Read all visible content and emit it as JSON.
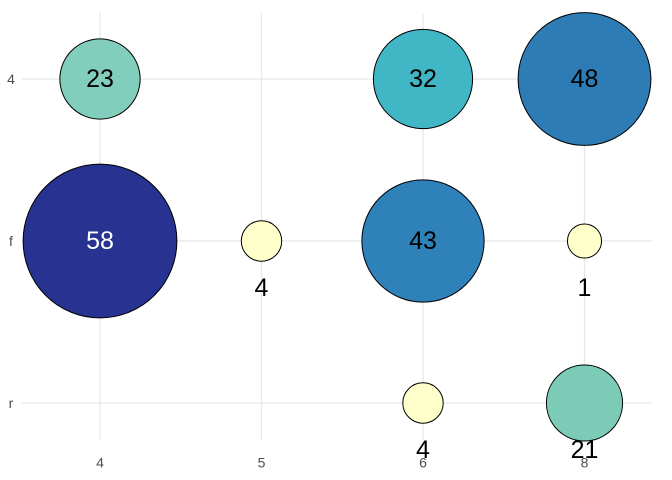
{
  "chart_data": {
    "type": "scatter",
    "subtype": "bubble",
    "title": "",
    "xlabel": "",
    "ylabel": "",
    "x_ticks": [
      "4",
      "5",
      "6",
      "8"
    ],
    "y_ticks": [
      "4",
      "f",
      "r"
    ],
    "grid": true,
    "legend": "none",
    "points": [
      {
        "x": "4",
        "y": "4",
        "value": 23,
        "color": "#82CEBC",
        "label_color": "#000000",
        "label_position": "center"
      },
      {
        "x": "6",
        "y": "4",
        "value": 32,
        "color": "#41B6C4",
        "label_color": "#000000",
        "label_position": "center"
      },
      {
        "x": "8",
        "y": "4",
        "value": 48,
        "color": "#2D7CB6",
        "label_color": "#000000",
        "label_position": "center"
      },
      {
        "x": "4",
        "y": "f",
        "value": 58,
        "color": "#283391",
        "label_color": "#FFFFFF",
        "label_position": "center"
      },
      {
        "x": "5",
        "y": "f",
        "value": 4,
        "color": "#FFFFCC",
        "label_color": "#000000",
        "label_position": "below"
      },
      {
        "x": "6",
        "y": "f",
        "value": 43,
        "color": "#2F81BA",
        "label_color": "#000000",
        "label_position": "center"
      },
      {
        "x": "8",
        "y": "f",
        "value": 1,
        "color": "#FFFFCC",
        "label_color": "#000000",
        "label_position": "below"
      },
      {
        "x": "6",
        "y": "r",
        "value": 4,
        "color": "#FFFFCC",
        "label_color": "#000000",
        "label_position": "below"
      },
      {
        "x": "8",
        "y": "r",
        "value": 21,
        "color": "#7CCBB7",
        "label_color": "#000000",
        "label_position": "below"
      }
    ],
    "size_scale": {
      "radius_intercept": 16,
      "radius_slope": 1.05
    },
    "colors": {
      "background": "#FFFFFF",
      "grid": "#E8E8E8",
      "axis_text": "#4D4D4D",
      "circle_stroke": "#000000"
    }
  }
}
